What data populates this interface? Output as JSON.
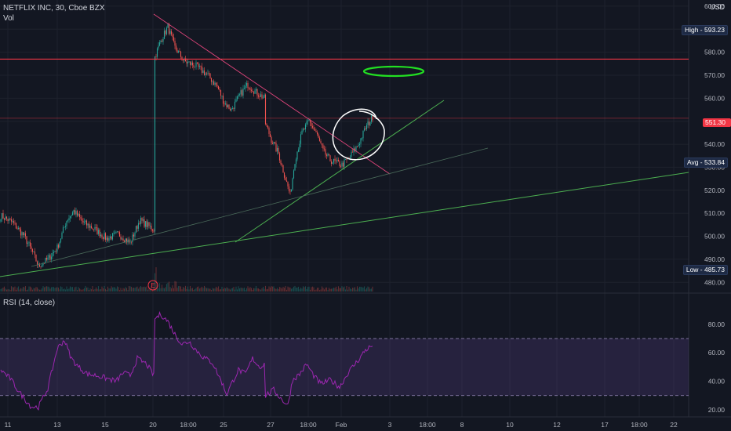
{
  "header": {
    "symbol_line": "NETFLIX INC, 30, Cboe BZX",
    "volume_label": "Vol",
    "currency": "USD"
  },
  "rsi": {
    "label": "RSI (14, close)"
  },
  "markers": {
    "high_label": "High",
    "high_value": "593.23",
    "last_price": "551.30",
    "avg_label": "Avg",
    "avg_value": "533.84",
    "low_label": "Low",
    "low_value": "485.73",
    "earnings_badge": "E"
  },
  "colors": {
    "background": "#131722",
    "up": "#26a69a",
    "down": "#ef5350",
    "resistance": "#f23645",
    "trendline": "#4caf50",
    "rsi_line": "#9c27b0",
    "annotation": "#ffffff"
  },
  "chart_data": [
    {
      "type": "candlestick",
      "title": "NETFLIX INC, 30, Cboe BZX",
      "x_ticks": [
        "11",
        "13",
        "15",
        "20",
        "18:00",
        "25",
        "27",
        "18:00",
        "Feb",
        "3",
        "18:00",
        "8",
        "10",
        "12",
        "17",
        "18:00",
        "22"
      ],
      "y_ticks": [
        "480.00",
        "490.00",
        "500.00",
        "510.00",
        "520.00",
        "530.00",
        "540.00",
        "550.00",
        "560.00",
        "570.00",
        "580.00",
        "590.00",
        "600.00"
      ],
      "ylim": [
        476,
        602
      ],
      "price_anchors": [
        [
          0,
          509
        ],
        [
          10,
          506
        ],
        [
          20,
          500
        ],
        [
          28,
          492
        ],
        [
          32,
          487
        ],
        [
          40,
          490
        ],
        [
          48,
          495
        ],
        [
          56,
          507
        ],
        [
          62,
          511
        ],
        [
          70,
          506
        ],
        [
          80,
          503
        ],
        [
          90,
          499
        ],
        [
          100,
          501
        ],
        [
          110,
          497
        ],
        [
          118,
          507
        ],
        [
          124,
          505
        ],
        [
          130,
          503
        ],
        [
          131,
          578
        ],
        [
          136,
          585
        ],
        [
          142,
          591
        ],
        [
          148,
          582
        ],
        [
          156,
          576
        ],
        [
          166,
          574
        ],
        [
          176,
          570
        ],
        [
          184,
          565
        ],
        [
          190,
          558
        ],
        [
          196,
          555
        ],
        [
          204,
          562
        ],
        [
          210,
          566
        ],
        [
          216,
          563
        ],
        [
          224,
          560
        ],
        [
          225,
          549
        ],
        [
          230,
          542
        ],
        [
          236,
          536
        ],
        [
          242,
          525
        ],
        [
          246,
          518
        ],
        [
          250,
          533
        ],
        [
          256,
          545
        ],
        [
          262,
          550
        ],
        [
          268,
          545
        ],
        [
          274,
          537
        ],
        [
          280,
          533
        ],
        [
          290,
          531
        ],
        [
          296,
          534
        ],
        [
          304,
          540
        ],
        [
          310,
          547
        ],
        [
          316,
          552
        ]
      ],
      "horizontal_levels": [
        577,
        551.3
      ],
      "high": 593.23,
      "low": 485.73,
      "avg": 533.84,
      "last": 551.3
    },
    {
      "type": "line",
      "title": "RSI (14, close)",
      "y_ticks": [
        "20.00",
        "40.00",
        "60.00",
        "80.00"
      ],
      "ylim": [
        15,
        92
      ],
      "bands": [
        30,
        70
      ],
      "rsi_anchors": [
        [
          0,
          48
        ],
        [
          8,
          42
        ],
        [
          16,
          32
        ],
        [
          26,
          22
        ],
        [
          32,
          22
        ],
        [
          40,
          35
        ],
        [
          48,
          63
        ],
        [
          54,
          69
        ],
        [
          60,
          56
        ],
        [
          66,
          50
        ],
        [
          74,
          45
        ],
        [
          82,
          44
        ],
        [
          90,
          42
        ],
        [
          98,
          40
        ],
        [
          104,
          46
        ],
        [
          110,
          44
        ],
        [
          116,
          56
        ],
        [
          124,
          52
        ],
        [
          130,
          44
        ],
        [
          131,
          84
        ],
        [
          136,
          87
        ],
        [
          142,
          82
        ],
        [
          148,
          73
        ],
        [
          154,
          66
        ],
        [
          160,
          68
        ],
        [
          166,
          62
        ],
        [
          172,
          57
        ],
        [
          180,
          53
        ],
        [
          188,
          39
        ],
        [
          192,
          31
        ],
        [
          196,
          38
        ],
        [
          202,
          48
        ],
        [
          208,
          45
        ],
        [
          214,
          56
        ],
        [
          220,
          50
        ],
        [
          224,
          52
        ],
        [
          225,
          30
        ],
        [
          232,
          34
        ],
        [
          238,
          28
        ],
        [
          244,
          23
        ],
        [
          248,
          41
        ],
        [
          254,
          45
        ],
        [
          260,
          52
        ],
        [
          266,
          44
        ],
        [
          272,
          38
        ],
        [
          280,
          41
        ],
        [
          288,
          36
        ],
        [
          296,
          47
        ],
        [
          304,
          55
        ],
        [
          310,
          62
        ],
        [
          316,
          65
        ]
      ]
    }
  ]
}
